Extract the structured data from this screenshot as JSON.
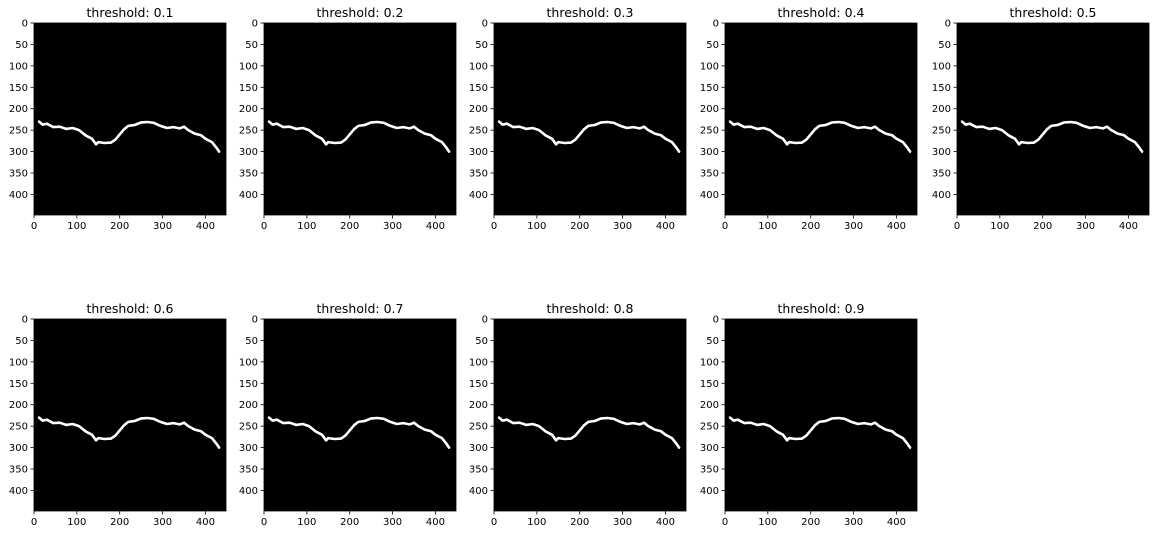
{
  "figure": {
    "background": "#ffffff",
    "image_background": "#000000",
    "curve_color": "#ffffff",
    "axis_color": "#000000",
    "text_color": "#000000"
  },
  "panels": [
    {
      "title": "threshold: 0.1"
    },
    {
      "title": "threshold: 0.2"
    },
    {
      "title": "threshold: 0.3"
    },
    {
      "title": "threshold: 0.4"
    },
    {
      "title": "threshold: 0.5"
    },
    {
      "title": "threshold: 0.6"
    },
    {
      "title": "threshold: 0.7"
    },
    {
      "title": "threshold: 0.8"
    },
    {
      "title": "threshold: 0.9"
    }
  ],
  "chart_data": {
    "type": "image-grid",
    "layout": {
      "rows": 2,
      "cols": 5
    },
    "image_size": [
      448,
      448
    ],
    "xlim": [
      0,
      448
    ],
    "ylim": [
      448,
      0
    ],
    "x_ticks": [
      0,
      100,
      200,
      300,
      400
    ],
    "y_ticks": [
      0,
      50,
      100,
      150,
      200,
      250,
      300,
      350,
      400
    ],
    "curve": {
      "x": [
        12,
        20,
        30,
        45,
        60,
        75,
        90,
        105,
        120,
        135,
        145,
        150,
        165,
        180,
        190,
        200,
        210,
        220,
        235,
        250,
        265,
        280,
        295,
        310,
        325,
        340,
        350,
        360,
        375,
        390,
        400,
        415,
        425,
        432
      ],
      "y": [
        230,
        237,
        235,
        243,
        242,
        247,
        245,
        250,
        262,
        270,
        283,
        278,
        280,
        279,
        272,
        260,
        248,
        240,
        238,
        232,
        231,
        233,
        240,
        245,
        243,
        246,
        242,
        250,
        258,
        262,
        270,
        278,
        290,
        300
      ]
    }
  }
}
